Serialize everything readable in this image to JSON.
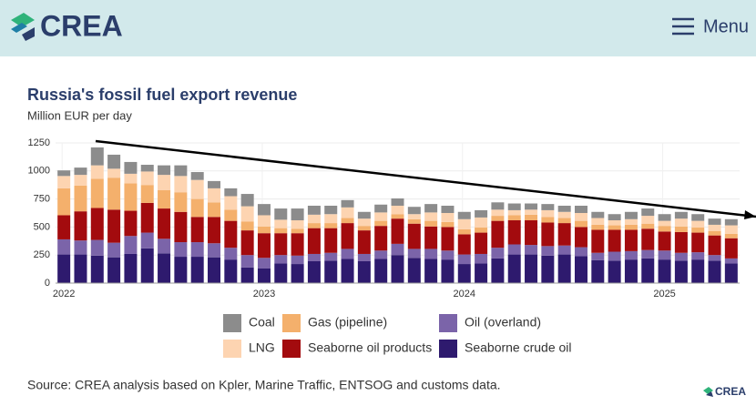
{
  "header": {
    "logo": "CREA",
    "menu": "Menu"
  },
  "chart_data": {
    "type": "stacked_bar",
    "title": "Russia's fossil fuel export revenue",
    "subtitle": "Million EUR per day",
    "categories": [
      "2022",
      null,
      null,
      null,
      null,
      null,
      null,
      null,
      null,
      null,
      null,
      null,
      "2023",
      null,
      null,
      null,
      null,
      null,
      null,
      null,
      null,
      null,
      null,
      null,
      "2024",
      null,
      null,
      null,
      null,
      null,
      null,
      null,
      null,
      null,
      null,
      null,
      "2025",
      null,
      null,
      null,
      null
    ],
    "ylim": [
      0,
      1250
    ],
    "yticks": [
      0,
      250,
      500,
      750,
      1000,
      1250
    ],
    "grid": true,
    "series": [
      {
        "name": "Seaborne crude oil",
        "color": "#2e1a6e",
        "values": [
          255,
          255,
          245,
          230,
          260,
          310,
          265,
          235,
          235,
          230,
          210,
          140,
          130,
          175,
          170,
          195,
          200,
          215,
          195,
          215,
          250,
          225,
          215,
          210,
          170,
          175,
          220,
          255,
          255,
          245,
          255,
          240,
          205,
          200,
          210,
          220,
          210,
          200,
          210,
          200,
          175
        ]
      },
      {
        "name": "Oil (overland)",
        "color": "#7b64a9",
        "values": [
          135,
          125,
          140,
          130,
          160,
          140,
          130,
          130,
          130,
          125,
          105,
          110,
          95,
          75,
          75,
          65,
          70,
          90,
          65,
          75,
          100,
          80,
          90,
          80,
          85,
          85,
          95,
          90,
          85,
          85,
          80,
          80,
          65,
          80,
          75,
          75,
          80,
          70,
          65,
          50,
          45
        ]
      },
      {
        "name": "Seaborne oil products",
        "color": "#a30b0e",
        "values": [
          215,
          260,
          285,
          295,
          225,
          265,
          270,
          270,
          225,
          235,
          240,
          220,
          220,
          195,
          200,
          230,
          220,
          230,
          210,
          220,
          225,
          225,
          200,
          210,
          180,
          190,
          240,
          215,
          220,
          210,
          200,
          180,
          205,
          195,
          190,
          190,
          170,
          185,
          175,
          175,
          180
        ]
      },
      {
        "name": "Gas (pipeline)",
        "color": "#f4b06c",
        "values": [
          240,
          230,
          260,
          285,
          245,
          160,
          165,
          175,
          160,
          130,
          100,
          80,
          60,
          45,
          40,
          45,
          45,
          45,
          40,
          45,
          40,
          40,
          50,
          45,
          45,
          45,
          45,
          45,
          50,
          50,
          45,
          55,
          45,
          40,
          45,
          45,
          50,
          50,
          45,
          40,
          40
        ]
      },
      {
        "name": "LNG",
        "color": "#fdd4b1",
        "values": [
          110,
          95,
          120,
          80,
          85,
          120,
          135,
          145,
          170,
          125,
          120,
          135,
          100,
          75,
          75,
          75,
          80,
          95,
          65,
          75,
          75,
          45,
          75,
          80,
          90,
          90,
          55,
          45,
          45,
          60,
          55,
          70,
          60,
          45,
          50,
          70,
          45,
          70,
          60,
          55,
          75
        ]
      },
      {
        "name": "Coal",
        "color": "#8c8c8c",
        "values": [
          50,
          65,
          160,
          125,
          105,
          60,
          85,
          95,
          70,
          65,
          70,
          110,
          100,
          100,
          105,
          80,
          75,
          65,
          60,
          70,
          65,
          65,
          75,
          65,
          65,
          65,
          65,
          60,
          55,
          55,
          55,
          65,
          55,
          55,
          65,
          65,
          60,
          60,
          60,
          55,
          55
        ]
      }
    ],
    "source": "Source: CREA analysis based on Kpler, Marine Traffic, ENTSOG and customs data.",
    "footer_logo": "CREA"
  }
}
